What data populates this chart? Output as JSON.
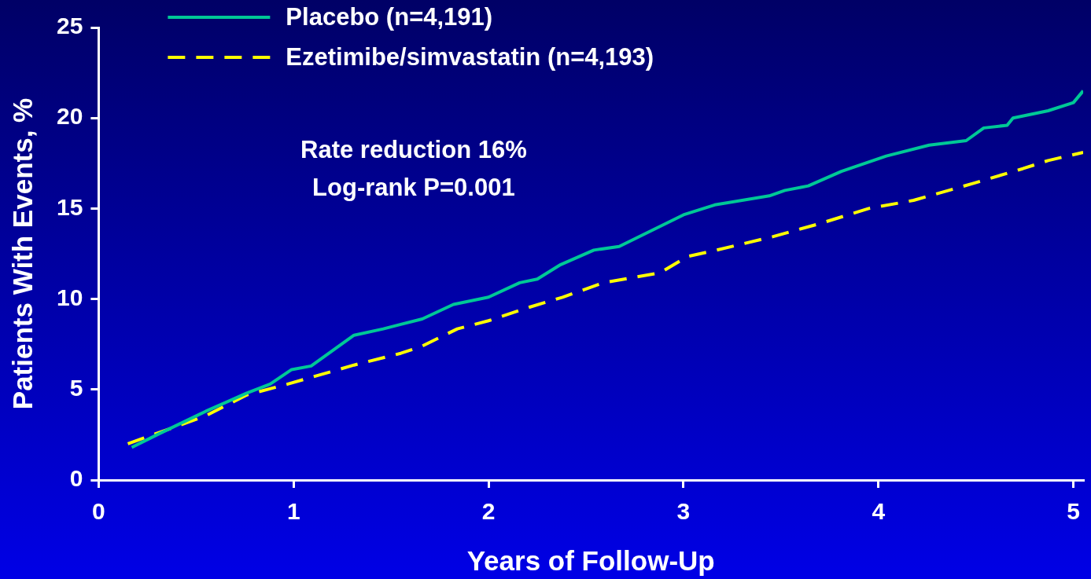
{
  "chart_data": {
    "type": "line",
    "xlabel": "Years of Follow-Up",
    "ylabel": "Patients With Events, %",
    "xlim": [
      0,
      5.05
    ],
    "xticks": [
      0,
      1,
      2,
      3,
      4,
      5
    ],
    "ylim": [
      0,
      25
    ],
    "yticks": [
      0,
      5,
      10,
      15,
      20,
      25
    ],
    "grid": false,
    "legend": "top left",
    "marker": "none",
    "annotations": [
      "Rate reduction 16%",
      "Log-rank P=0.001"
    ],
    "series": [
      {
        "name": "Placebo (n=4,191)",
        "color": "#00c896",
        "line_style": "solid",
        "x": [
          0.17,
          0.3,
          0.55,
          0.76,
          0.88,
          0.99,
          1.09,
          1.31,
          1.46,
          1.66,
          1.82,
          2.0,
          2.16,
          2.25,
          2.37,
          2.54,
          2.67,
          3.0,
          3.16,
          3.44,
          3.52,
          3.64,
          3.81,
          4.04,
          4.26,
          4.45,
          4.54,
          4.66,
          4.69,
          4.87,
          5.0,
          5.05
        ],
        "values": [
          1.8,
          2.5,
          3.8,
          4.8,
          5.3,
          6.1,
          6.3,
          8.0,
          8.35,
          8.9,
          9.7,
          10.1,
          10.9,
          11.1,
          11.9,
          12.7,
          12.9,
          14.65,
          15.2,
          15.7,
          16.0,
          16.25,
          17.05,
          17.9,
          18.5,
          18.75,
          19.45,
          19.6,
          20.0,
          20.4,
          20.85,
          21.5
        ]
      },
      {
        "name": "Ezetimibe/simvastatin (n=4,193)",
        "color": "#ffff00",
        "line_style": "dashed",
        "x": [
          0.15,
          0.55,
          0.76,
          0.97,
          1.31,
          1.55,
          1.65,
          1.84,
          2.0,
          2.21,
          2.38,
          2.59,
          2.88,
          3.02,
          3.17,
          3.46,
          3.71,
          3.95,
          4.18,
          4.49,
          4.74,
          4.87,
          5.05
        ],
        "values": [
          2.0,
          3.55,
          4.7,
          5.3,
          6.35,
          7.0,
          7.35,
          8.35,
          8.8,
          9.55,
          10.1,
          10.9,
          11.45,
          12.35,
          12.7,
          13.45,
          14.2,
          15.0,
          15.45,
          16.4,
          17.2,
          17.65,
          18.1
        ]
      }
    ]
  }
}
